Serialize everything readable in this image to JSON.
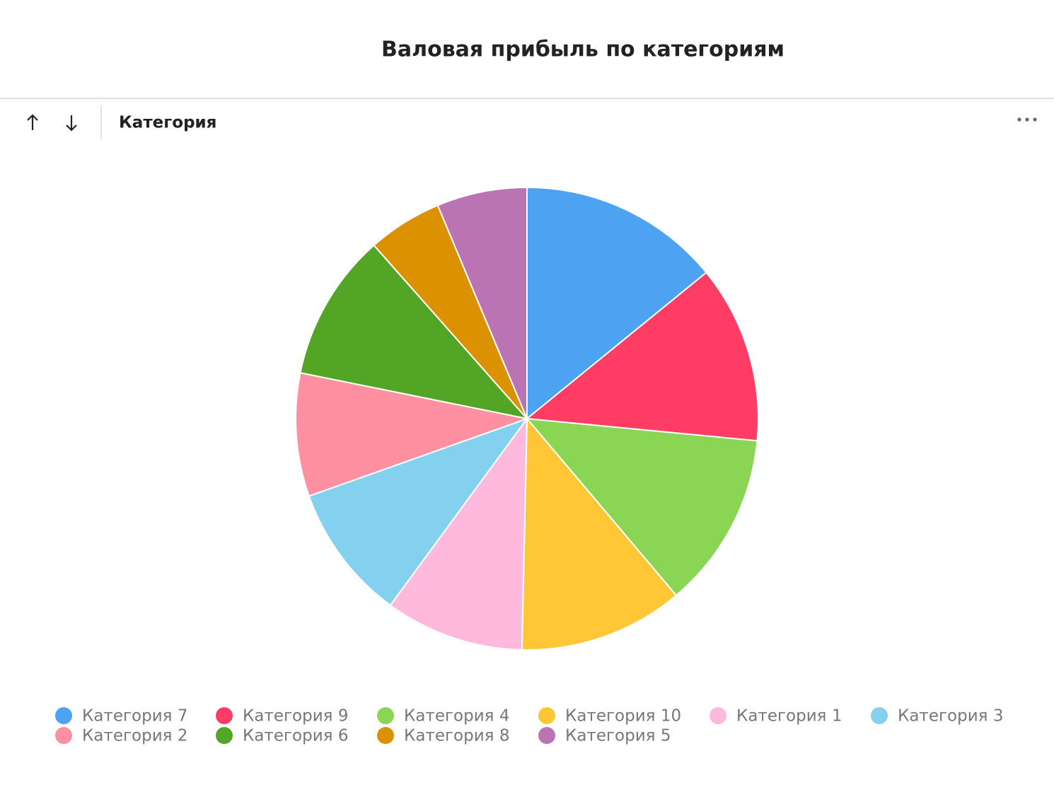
{
  "toolbar": {
    "label": "Категория"
  },
  "chart_data": {
    "type": "pie",
    "title": "Валовая прибыль по категориям",
    "categories": [
      "Категория 7",
      "Категория 9",
      "Категория 4",
      "Категория 10",
      "Категория 1",
      "Категория 3",
      "Категория 2",
      "Категория 6",
      "Категория 8",
      "Категория 5"
    ],
    "values": [
      14.1,
      12.4,
      12.3,
      11.5,
      9.7,
      9.5,
      8.6,
      10.3,
      5.2,
      6.3
    ],
    "colors": [
      "#4da2f1",
      "#ff3d64",
      "#8ad554",
      "#ffc636",
      "#ffb9dd",
      "#84d0ef",
      "#ff90a1",
      "#52a525",
      "#db9100",
      "#ba74b3"
    ],
    "legend": "bottom"
  }
}
